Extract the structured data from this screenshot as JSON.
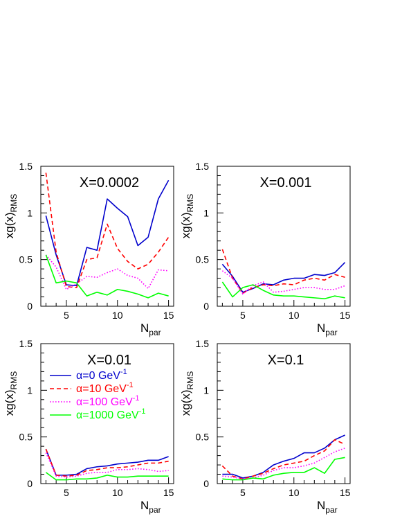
{
  "chart_data": [
    {
      "type": "line",
      "title": "X=0.0002",
      "xlabel": "N",
      "xlabel_sub": "par",
      "ylabel": "xg(x)",
      "ylabel_sub": "RMS",
      "xlim": [
        2.5,
        15.5
      ],
      "ylim": [
        0,
        1.5
      ],
      "x_ticks": [
        "5",
        "10",
        "15"
      ],
      "y_ticks": [
        "0",
        "0.5",
        "1",
        "1.5"
      ],
      "grid": false,
      "x": [
        3,
        4,
        5,
        6,
        7,
        8,
        9,
        10,
        11,
        12,
        13,
        14,
        15
      ],
      "series": [
        {
          "values": [
            0.97,
            0.55,
            0.23,
            0.22,
            0.63,
            0.6,
            1.15,
            1.05,
            0.96,
            0.65,
            0.74,
            1.15,
            1.35
          ],
          "color": "#0000cc",
          "dash": "solid"
        },
        {
          "values": [
            1.43,
            0.58,
            0.21,
            0.2,
            0.5,
            0.52,
            0.88,
            0.62,
            0.48,
            0.4,
            0.45,
            0.58,
            0.74
          ],
          "color": "#ff0000",
          "dash": "dashed"
        },
        {
          "values": [
            0.55,
            0.42,
            0.18,
            0.24,
            0.32,
            0.31,
            0.36,
            0.4,
            0.33,
            0.3,
            0.19,
            0.39,
            0.38
          ],
          "color": "#ff00ff",
          "dash": "dotted"
        },
        {
          "values": [
            0.55,
            0.25,
            0.27,
            0.25,
            0.11,
            0.15,
            0.12,
            0.18,
            0.16,
            0.13,
            0.09,
            0.14,
            0.11
          ],
          "color": "#00ff00",
          "dash": "solid"
        }
      ]
    },
    {
      "type": "line",
      "title": "X=0.001",
      "xlabel": "N",
      "xlabel_sub": "par",
      "ylabel": "xg(x)",
      "ylabel_sub": "RMS",
      "xlim": [
        2.5,
        15.5
      ],
      "ylim": [
        0,
        1.5
      ],
      "x_ticks": [
        "5",
        "10",
        "15"
      ],
      "y_ticks": [
        "0",
        "0.5",
        "1",
        "1.5"
      ],
      "grid": false,
      "x": [
        3,
        4,
        5,
        6,
        7,
        8,
        9,
        10,
        11,
        12,
        13,
        14,
        15
      ],
      "series": [
        {
          "values": [
            0.45,
            0.32,
            0.15,
            0.19,
            0.24,
            0.23,
            0.28,
            0.3,
            0.3,
            0.34,
            0.33,
            0.36,
            0.47
          ],
          "color": "#0000cc",
          "dash": "solid"
        },
        {
          "values": [
            0.61,
            0.3,
            0.14,
            0.2,
            0.23,
            0.22,
            0.24,
            0.23,
            0.28,
            0.3,
            0.28,
            0.34,
            0.31
          ],
          "color": "#ff0000",
          "dash": "dashed"
        },
        {
          "values": [
            0.38,
            0.3,
            0.13,
            0.22,
            0.26,
            0.15,
            0.16,
            0.18,
            0.2,
            0.2,
            0.18,
            0.18,
            0.22
          ],
          "color": "#ff00ff",
          "dash": "dotted"
        },
        {
          "values": [
            0.26,
            0.1,
            0.2,
            0.23,
            0.17,
            0.12,
            0.11,
            0.11,
            0.1,
            0.09,
            0.08,
            0.11,
            0.09
          ],
          "color": "#00ff00",
          "dash": "solid"
        }
      ]
    },
    {
      "type": "line",
      "title": "X=0.01",
      "xlabel": "N",
      "xlabel_sub": "par",
      "ylabel": "xg(x)",
      "ylabel_sub": "RMS",
      "xlim": [
        2.5,
        15.5
      ],
      "ylim": [
        0,
        1.5
      ],
      "x_ticks": [
        "5",
        "10",
        "15"
      ],
      "y_ticks": [
        "0",
        "0.5",
        "1",
        "1.5"
      ],
      "grid": false,
      "x": [
        3,
        4,
        5,
        6,
        7,
        8,
        9,
        10,
        11,
        12,
        13,
        14,
        15
      ],
      "series": [
        {
          "values": [
            0.37,
            0.09,
            0.09,
            0.1,
            0.16,
            0.18,
            0.19,
            0.21,
            0.22,
            0.23,
            0.25,
            0.25,
            0.29
          ],
          "color": "#0000cc",
          "dash": "solid"
        },
        {
          "values": [
            0.37,
            0.09,
            0.08,
            0.09,
            0.14,
            0.15,
            0.17,
            0.17,
            0.18,
            0.2,
            0.22,
            0.22,
            0.24
          ],
          "color": "#ff0000",
          "dash": "dashed"
        },
        {
          "values": [
            0.33,
            0.08,
            0.07,
            0.08,
            0.11,
            0.12,
            0.12,
            0.15,
            0.15,
            0.16,
            0.15,
            0.13,
            0.14
          ],
          "color": "#ff00ff",
          "dash": "dotted"
        },
        {
          "values": [
            0.12,
            0.04,
            0.04,
            0.05,
            0.05,
            0.06,
            0.09,
            0.07,
            0.07,
            0.08,
            0.08,
            0.08,
            0.08
          ],
          "color": "#00ff00",
          "dash": "solid"
        }
      ],
      "legend": {
        "placement": "upper-left",
        "entries": [
          {
            "prefix": "α=",
            "value": "0",
            "unit": "GeV",
            "exp": "-1",
            "color": "#0000cc"
          },
          {
            "prefix": "α=",
            "value": "10",
            "unit": "GeV",
            "exp": "-1",
            "color": "#ff0000"
          },
          {
            "prefix": "α=",
            "value": "100",
            "unit": "GeV",
            "exp": "-1",
            "color": "#ff00ff"
          },
          {
            "prefix": "α=",
            "value": "1000",
            "unit": "GeV",
            "exp": "-1",
            "color": "#00ff00"
          }
        ]
      }
    },
    {
      "type": "line",
      "title": "X=0.1",
      "xlabel": "N",
      "xlabel_sub": "par",
      "ylabel": "xg(x)",
      "ylabel_sub": "RMS",
      "xlim": [
        2.5,
        15.5
      ],
      "ylim": [
        0,
        1.5
      ],
      "x_ticks": [
        "5",
        "10",
        "15"
      ],
      "y_ticks": [
        "0",
        "0.5",
        "1",
        "1.5"
      ],
      "grid": false,
      "x": [
        3,
        4,
        5,
        6,
        7,
        8,
        9,
        10,
        11,
        12,
        13,
        14,
        15
      ],
      "series": [
        {
          "values": [
            0.1,
            0.1,
            0.06,
            0.08,
            0.12,
            0.2,
            0.24,
            0.27,
            0.33,
            0.33,
            0.38,
            0.47,
            0.52
          ],
          "color": "#0000cc",
          "dash": "solid"
        },
        {
          "values": [
            0.19,
            0.08,
            0.05,
            0.08,
            0.11,
            0.16,
            0.2,
            0.22,
            0.24,
            0.3,
            0.35,
            0.47,
            0.42
          ],
          "color": "#ff0000",
          "dash": "dashed"
        },
        {
          "values": [
            0.08,
            0.07,
            0.05,
            0.06,
            0.09,
            0.14,
            0.17,
            0.17,
            0.19,
            0.22,
            0.28,
            0.34,
            0.38
          ],
          "color": "#ff00ff",
          "dash": "dotted"
        },
        {
          "values": [
            0.05,
            0.04,
            0.04,
            0.06,
            0.05,
            0.09,
            0.11,
            0.12,
            0.12,
            0.17,
            0.11,
            0.26,
            0.28
          ],
          "color": "#00ff00",
          "dash": "solid"
        }
      ]
    }
  ]
}
